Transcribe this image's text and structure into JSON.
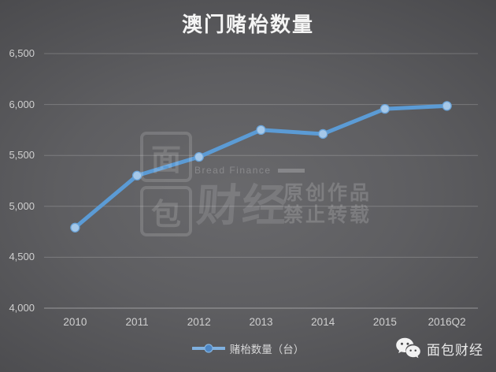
{
  "title": "澳门赌枱数量",
  "chart_data": {
    "type": "line",
    "title": "澳门赌枱数量",
    "categories": [
      "2010",
      "2011",
      "2012",
      "2013",
      "2014",
      "2015",
      "2016Q2"
    ],
    "series": [
      {
        "name": "赌枱数量（台）",
        "values": [
          4791,
          5302,
          5485,
          5750,
          5711,
          5957,
          5986
        ]
      }
    ],
    "ylim": [
      4000,
      6500
    ],
    "yticks": [
      4000,
      4500,
      5000,
      5500,
      6000,
      6500
    ],
    "ytick_labels": [
      "4,000",
      "4,500",
      "5,000",
      "5,500",
      "6,000",
      "6,500"
    ],
    "grid": true,
    "legend_position": "bottom",
    "line_color": "#5b9bd5",
    "marker_fill": "#a5c8e9",
    "marker_stroke": "#6aa3d8",
    "gridline_color": "rgba(255,255,255,0.20)",
    "axis_color": "rgba(255,255,255,0.40)"
  },
  "legend": {
    "label": "赌枱数量（台）"
  },
  "watermark": {
    "logo_char_top": "面",
    "logo_char_bottom": "包",
    "logo_text": "财经",
    "brand_en": "Bread Finance",
    "notice_line1": "原创作品",
    "notice_line2": "禁止转载"
  },
  "footer": {
    "brand": "面包财经"
  },
  "icons": {
    "wechat": "wechat-icon",
    "legend_marker": "line-marker-icon"
  }
}
